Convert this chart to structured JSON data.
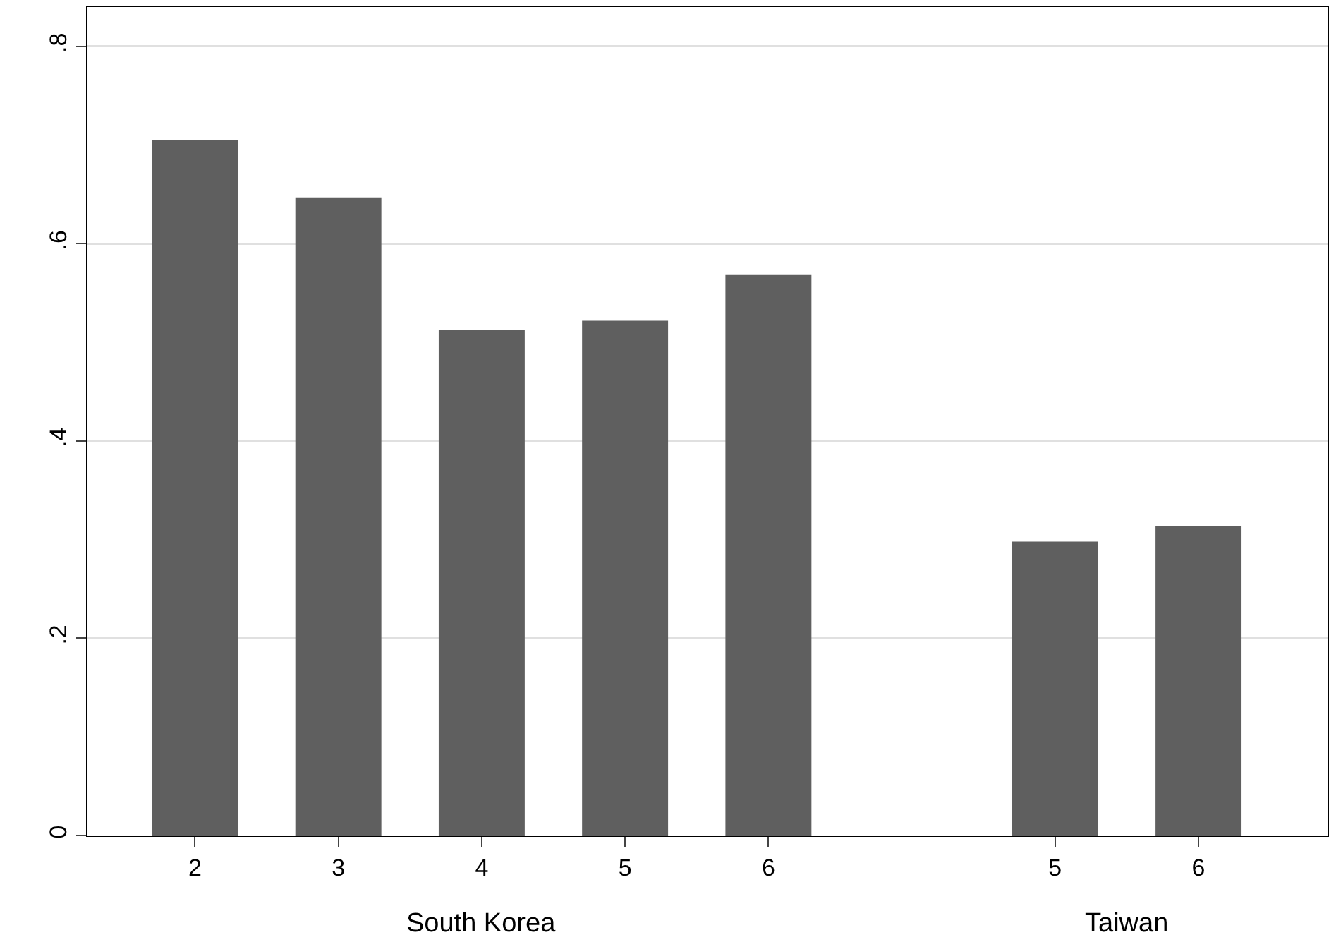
{
  "chart_data": {
    "type": "bar",
    "categories": [
      "2",
      "3",
      "4",
      "5",
      "6",
      null,
      "5",
      "6"
    ],
    "values": [
      0.705,
      0.647,
      0.513,
      0.522,
      0.569,
      null,
      0.298,
      0.314
    ],
    "color": "#5f5f5f",
    "ylim": [
      0,
      0.84
    ],
    "yticks": [
      {
        "value": 0,
        "label": "0"
      },
      {
        "value": 0.2,
        "label": ".2"
      },
      {
        "value": 0.4,
        "label": ".4"
      },
      {
        "value": 0.6,
        "label": ".6"
      },
      {
        "value": 0.8,
        "label": ".8"
      }
    ],
    "grid": "y",
    "annotations": [
      "South Korea",
      "Taiwan"
    ]
  }
}
